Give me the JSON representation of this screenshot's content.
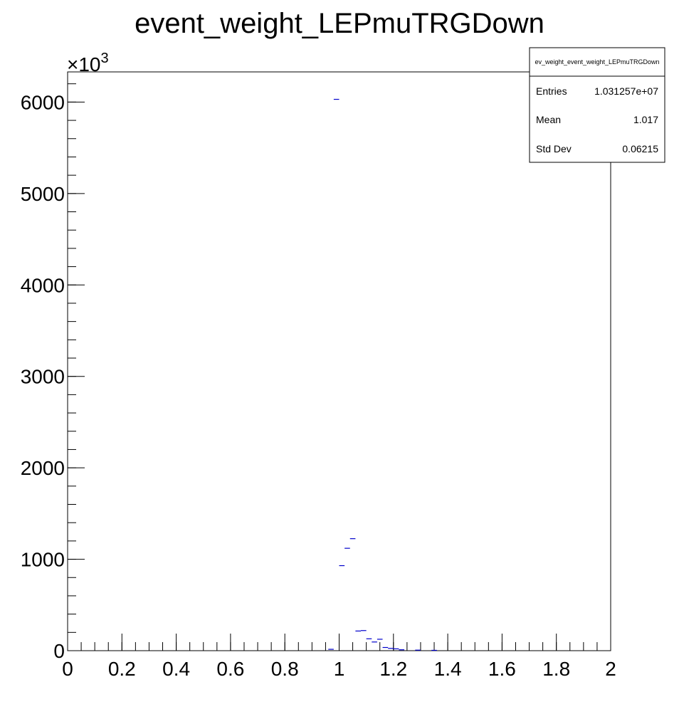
{
  "chart_data": {
    "type": "bar",
    "title": "event_weight_LEPmuTRGDown",
    "xlabel": "",
    "ylabel": "",
    "xlim": [
      0,
      2
    ],
    "ylim": [
      0,
      6330
    ],
    "y_multiplier_label": "×10",
    "y_multiplier_exponent": "3",
    "x_ticks": [
      {
        "value": 0,
        "label": "0"
      },
      {
        "value": 0.2,
        "label": "0.2"
      },
      {
        "value": 0.4,
        "label": "0.4"
      },
      {
        "value": 0.6,
        "label": "0.6"
      },
      {
        "value": 0.8,
        "label": "0.8"
      },
      {
        "value": 1,
        "label": "1"
      },
      {
        "value": 1.2,
        "label": "1.2"
      },
      {
        "value": 1.4,
        "label": "1.4"
      },
      {
        "value": 1.6,
        "label": "1.6"
      },
      {
        "value": 1.8,
        "label": "1.8"
      },
      {
        "value": 2,
        "label": "2"
      }
    ],
    "y_ticks": [
      {
        "value": 0,
        "label": "0"
      },
      {
        "value": 1000,
        "label": "1000"
      },
      {
        "value": 2000,
        "label": "2000"
      },
      {
        "value": 3000,
        "label": "3000"
      },
      {
        "value": 4000,
        "label": "4000"
      },
      {
        "value": 5000,
        "label": "5000"
      },
      {
        "value": 6000,
        "label": "6000"
      }
    ],
    "bin_width": 0.02,
    "bins": [
      {
        "x": 0.96,
        "y": 15
      },
      {
        "x": 0.98,
        "y": 6030
      },
      {
        "x": 1.0,
        "y": 930
      },
      {
        "x": 1.02,
        "y": 1120
      },
      {
        "x": 1.04,
        "y": 1225
      },
      {
        "x": 1.06,
        "y": 215
      },
      {
        "x": 1.08,
        "y": 220
      },
      {
        "x": 1.1,
        "y": 130
      },
      {
        "x": 1.12,
        "y": 95
      },
      {
        "x": 1.14,
        "y": 125
      },
      {
        "x": 1.16,
        "y": 35
      },
      {
        "x": 1.18,
        "y": 25
      },
      {
        "x": 1.2,
        "y": 20
      },
      {
        "x": 1.22,
        "y": 10
      },
      {
        "x": 1.28,
        "y": 6
      },
      {
        "x": 1.34,
        "y": 4
      }
    ],
    "line_color": "#0000cc",
    "stats_box": {
      "title": "ev_weight_event_weight_LEPmuTRGDown",
      "rows": [
        {
          "label": "Entries",
          "value": "1.031257e+07"
        },
        {
          "label": "Mean",
          "value": "1.017"
        },
        {
          "label": "Std Dev",
          "value": "0.06215"
        }
      ]
    }
  }
}
